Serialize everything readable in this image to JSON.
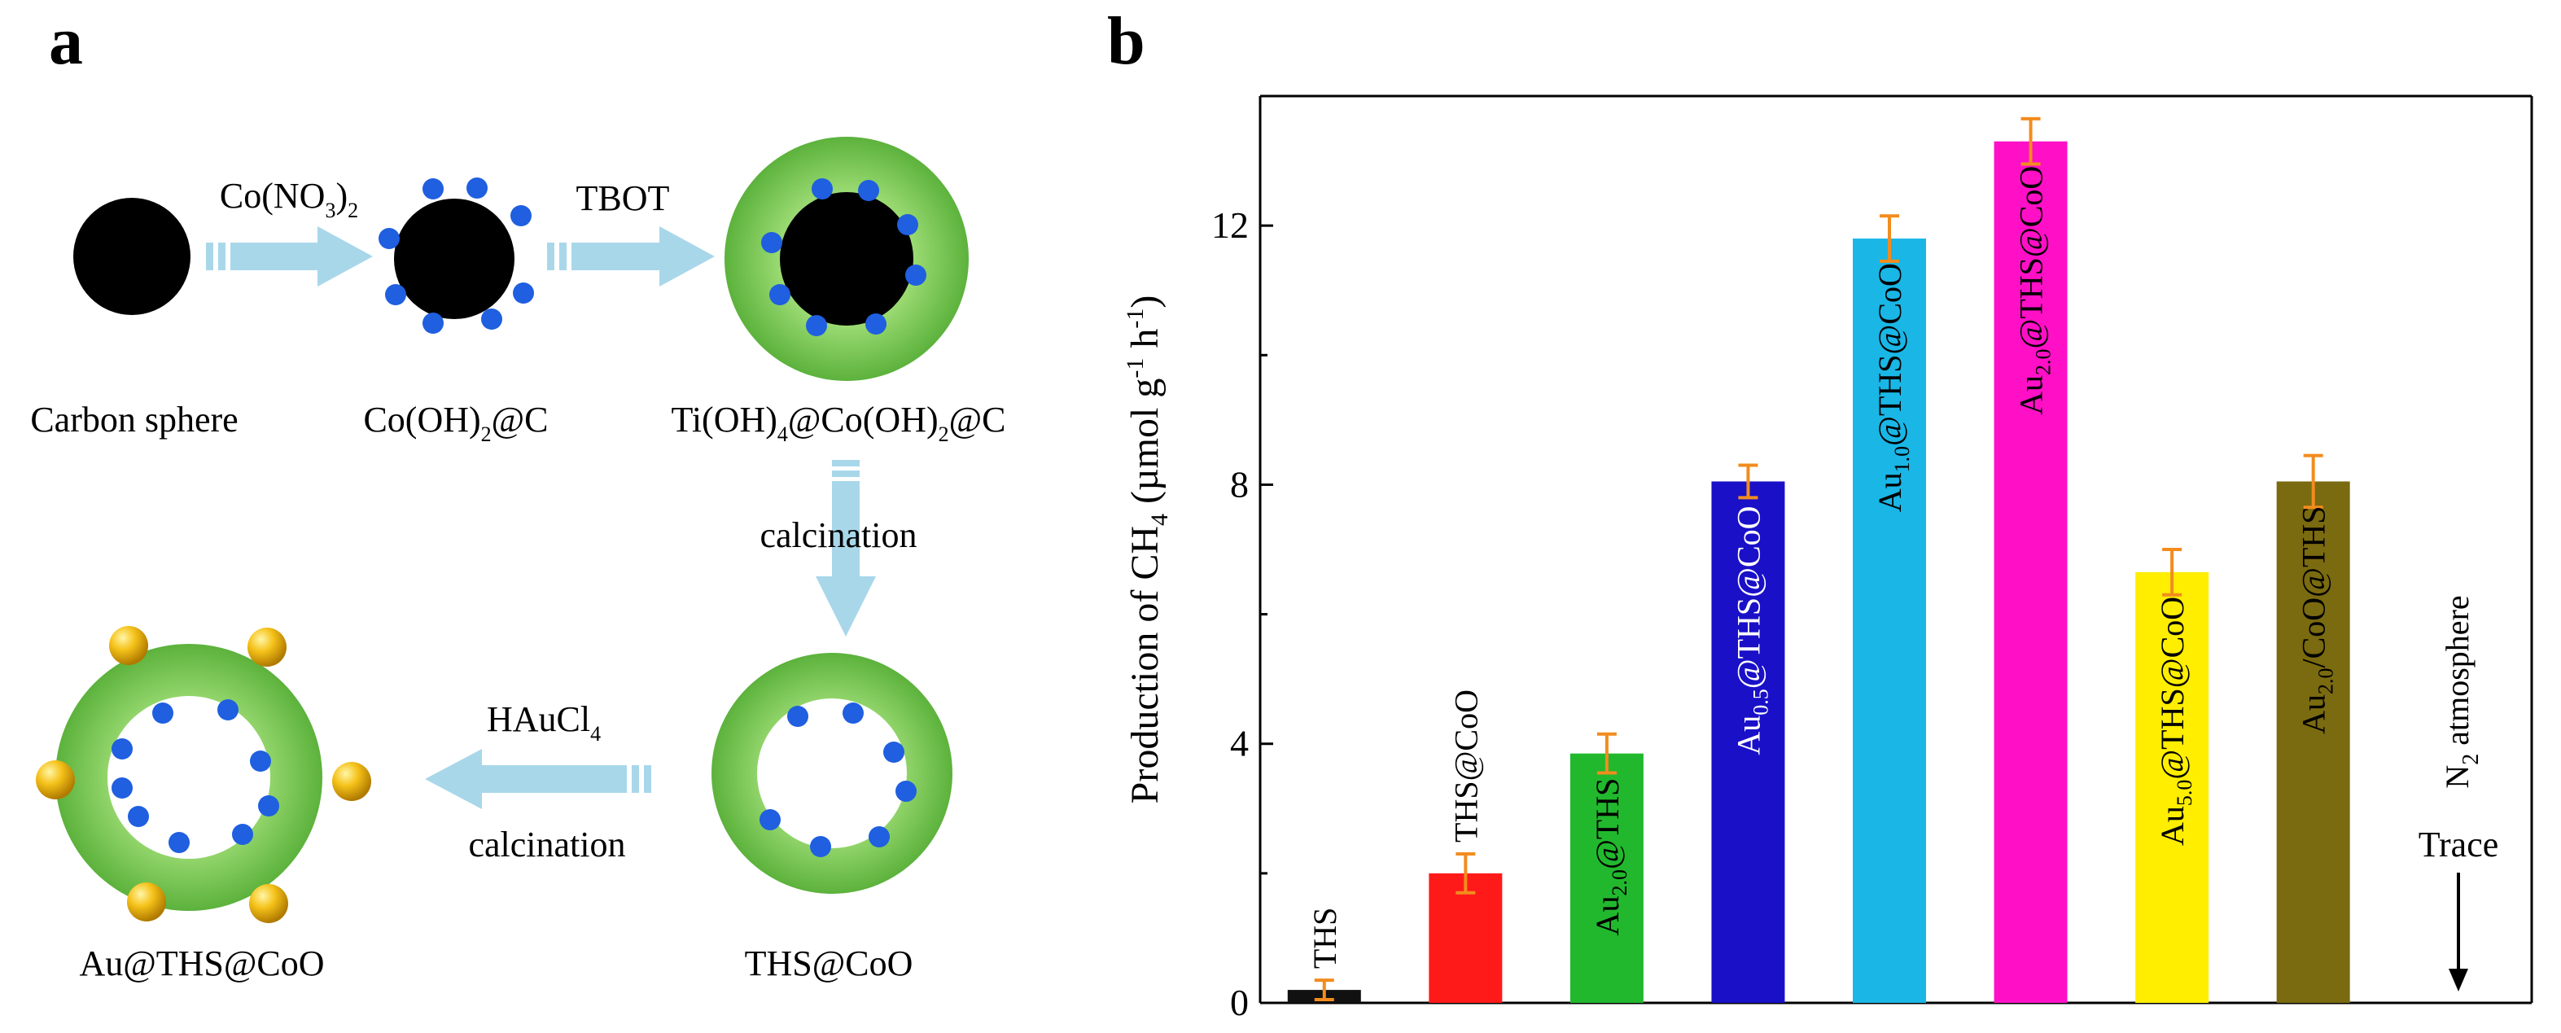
{
  "panels": {
    "a_label": "a",
    "b_label": "b"
  },
  "scheme": {
    "reagent1": {
      "main": "Co(NO",
      "sub1": "3",
      "close": ")",
      "sub2": "2"
    },
    "reagent2": "TBOT",
    "step_down": "calcination",
    "reagent3": {
      "main": "HAuCl",
      "sub": "4"
    },
    "step_left": "calcination",
    "labels": {
      "carbon_sphere": "Carbon sphere",
      "co_oh2_c": {
        "pre": "Co(OH)",
        "sub": "2",
        "post": "@C"
      },
      "ti_co_c": {
        "pre": "Ti(OH)",
        "sub1": "4",
        "mid": "@Co(OH)",
        "sub2": "2",
        "post": "@C"
      },
      "ths_coo": "THS@CoO",
      "au_ths_coo": "Au@THS@CoO"
    },
    "colors": {
      "core": "#000000",
      "shell": "#6cc04a",
      "shell_light": "#8fd46a",
      "dot": "#1f5fe0",
      "gold": "#f2b705",
      "arrow": "#a9d7ea"
    }
  },
  "chart_data": {
    "type": "bar",
    "ylabel": {
      "pre": "Production of CH",
      "sub": "4",
      "mid": " (µmol g",
      "sup1": "-1",
      "mid2": " h",
      "sup2": "-1",
      "post": ")"
    },
    "ylim": [
      0,
      14
    ],
    "yticks": [
      0,
      4,
      8,
      12
    ],
    "categories": [
      {
        "pre": "THS",
        "sub": "",
        "post": ""
      },
      {
        "pre": "THS@CoO",
        "sub": "",
        "post": ""
      },
      {
        "pre": "Au",
        "sub": "2.0",
        "post": "@THS"
      },
      {
        "pre": "Au",
        "sub": "0.5",
        "post": "@THS@CoO"
      },
      {
        "pre": "Au",
        "sub": "1.0",
        "post": "@THS@CoO"
      },
      {
        "pre": "Au",
        "sub": "2.0",
        "post": "@THS@CoO"
      },
      {
        "pre": "Au",
        "sub": "5.0",
        "post": "@THS@CoO"
      },
      {
        "pre": "Au",
        "sub": "2.0",
        "post": "/CoO@THS"
      },
      {
        "pre": "",
        "sub": "",
        "post": ""
      }
    ],
    "values": [
      0.2,
      2.0,
      3.85,
      8.05,
      11.8,
      13.3,
      6.65,
      8.05,
      0
    ],
    "errors": [
      0.15,
      0.3,
      0.3,
      0.25,
      0.35,
      0.35,
      0.35,
      0.4,
      0
    ],
    "colors": [
      "#111111",
      "#ff1a1a",
      "#22b82e",
      "#1a10c8",
      "#19b6e6",
      "#ff10c6",
      "#ffee00",
      "#7a6a10",
      "#ffffff"
    ],
    "label_colors": [
      "#000000",
      "#000000",
      "#000000",
      "#ffffff",
      "#000000",
      "#000000",
      "#000000",
      "#000000",
      "#000000"
    ],
    "label_inside": [
      false,
      false,
      true,
      true,
      true,
      true,
      true,
      true,
      false
    ],
    "error_color": "#f28c1e",
    "annotation": {
      "n2": {
        "pre": "N",
        "sub": "2",
        "post": " atmosphere"
      },
      "trace": "Trace"
    }
  }
}
